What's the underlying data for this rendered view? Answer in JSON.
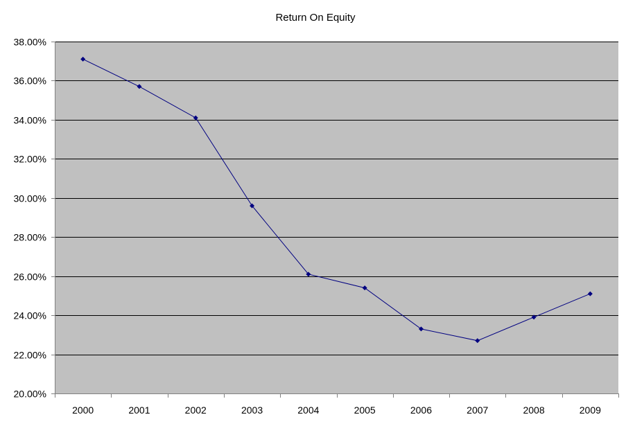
{
  "colors": {
    "plot_background": "#c0c0c0",
    "gridline": "#000000",
    "series_line": "#000080",
    "axis": "#808080"
  },
  "chart_data": {
    "type": "line",
    "title": "Return On Equity",
    "xlabel": "",
    "ylabel": "",
    "categories": [
      "2000",
      "2001",
      "2002",
      "2003",
      "2004",
      "2005",
      "2006",
      "2007",
      "2008",
      "2009"
    ],
    "series": [
      {
        "values": [
          37.1,
          35.7,
          34.1,
          29.6,
          26.1,
          25.4,
          23.3,
          22.7,
          23.9,
          25.1
        ]
      }
    ],
    "ylim": [
      20,
      38
    ],
    "yticks": [
      20,
      22,
      24,
      26,
      28,
      30,
      32,
      34,
      36,
      38
    ],
    "ytick_labels": [
      "20.00%",
      "22.00%",
      "24.00%",
      "26.00%",
      "28.00%",
      "30.00%",
      "32.00%",
      "34.00%",
      "36.00%",
      "38.00%"
    ],
    "grid": true,
    "legend": "none",
    "marker": "diamond"
  }
}
